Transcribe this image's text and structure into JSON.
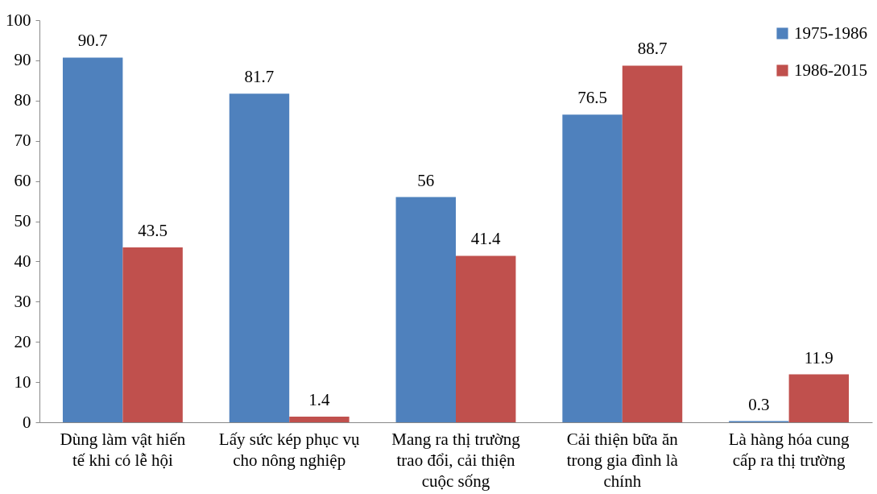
{
  "chart_data": {
    "type": "bar",
    "categories": [
      "Dùng làm vật hiến tế khi có lễ hội",
      "Lấy sức kép phục vụ cho nông nghiệp",
      "Mang ra thị trường trao đổi, cải thiện cuộc sống",
      "Cải thiện bữa ăn trong gia đình là chính",
      "Là hàng hóa cung cấp ra thị trường"
    ],
    "series": [
      {
        "name": "1975-1986",
        "color": "#4f81bd",
        "values": [
          90.7,
          81.7,
          56,
          76.5,
          0.3
        ]
      },
      {
        "name": "1986-2015",
        "color": "#c0504d",
        "values": [
          43.5,
          1.4,
          41.4,
          88.7,
          11.9
        ]
      }
    ],
    "ylim": [
      0,
      100
    ],
    "yticks": [
      0,
      10,
      20,
      30,
      40,
      50,
      60,
      70,
      80,
      90,
      100
    ],
    "data_labels": true,
    "grid": false,
    "legend": "top right"
  }
}
